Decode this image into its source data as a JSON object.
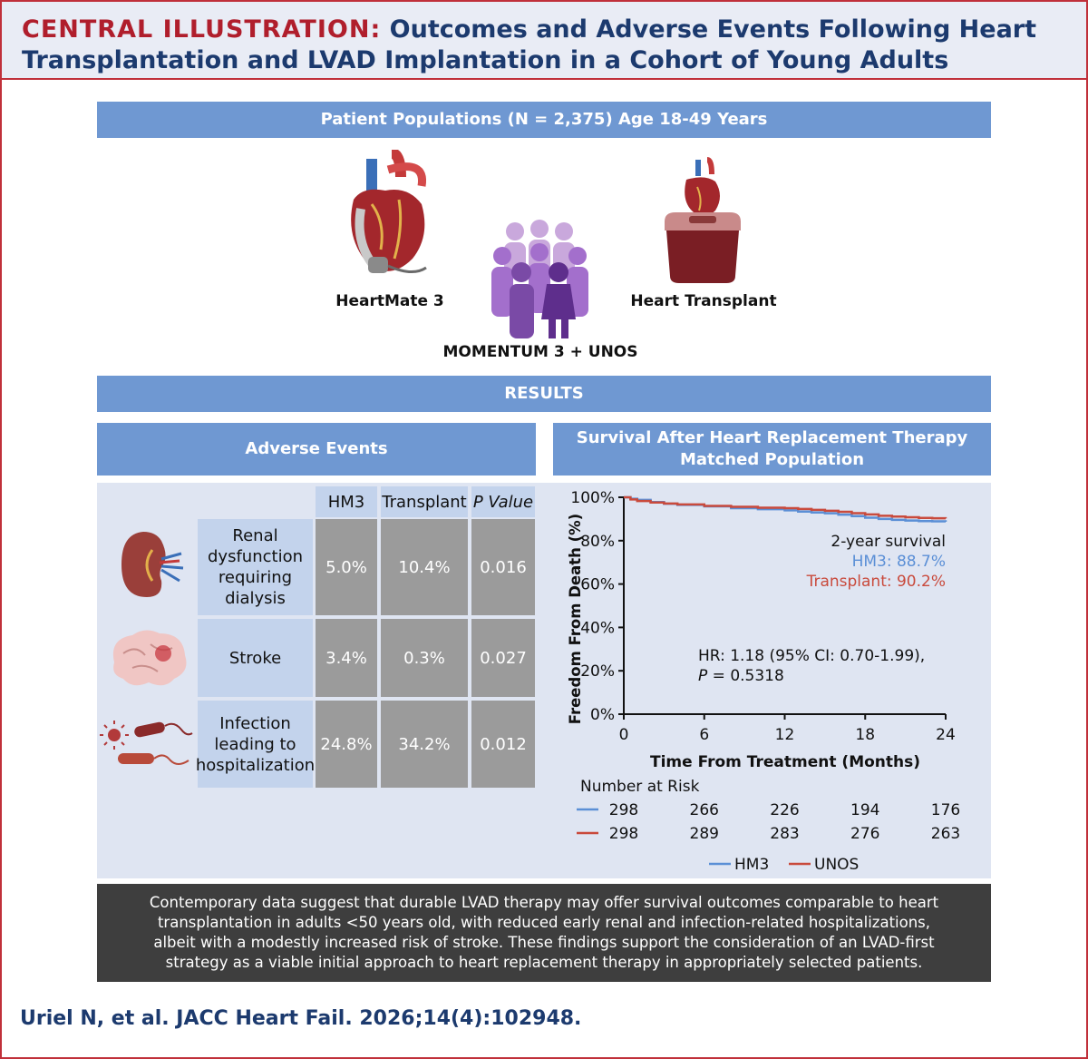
{
  "header": {
    "lead": "CENTRAL ILLUSTRATION:",
    "title": "Outcomes and Adverse Events Following Heart Transplantation and LVAD Implantation in a Cohort of Young Adults"
  },
  "populations": {
    "bar": "Patient Populations (N = 2,375) Age 18-49 Years",
    "left_label": "HeartMate 3",
    "center_label": "MOMENTUM 3 + UNOS",
    "right_label": "Heart Transplant"
  },
  "results_bar": "RESULTS",
  "adverse": {
    "title": "Adverse Events",
    "columns": [
      "HM3",
      "Transplant",
      "P Value"
    ],
    "rows": [
      {
        "label": "Renal dysfunction requiring dialysis",
        "hm3": "5.0%",
        "transplant": "10.4%",
        "p": "0.016"
      },
      {
        "label": "Stroke",
        "hm3": "3.4%",
        "transplant": "0.3%",
        "p": "0.027"
      },
      {
        "label": "Infection leading to hospitalization",
        "hm3": "24.8%",
        "transplant": "34.2%",
        "p": "0.012"
      }
    ]
  },
  "survival": {
    "title_line1": "Survival After Heart Replacement Therapy",
    "title_line2": "Matched Population"
  },
  "chart_data": {
    "type": "line",
    "xlabel": "Time From Treatment (Months)",
    "ylabel": "Freedom From Death (%)",
    "xlim": [
      0,
      24
    ],
    "ylim": [
      0,
      100
    ],
    "x_ticks": [
      "0",
      "6",
      "12",
      "18",
      "24"
    ],
    "y_ticks": [
      "0%",
      "20%",
      "40%",
      "60%",
      "80%",
      "100%"
    ],
    "series": [
      {
        "name": "HM3",
        "color": "#5b8fd6",
        "x": [
          0,
          0.5,
          1,
          2,
          3,
          4,
          6,
          8,
          10,
          12,
          13,
          14,
          15,
          16,
          17,
          18,
          19,
          20,
          21,
          22,
          23,
          24
        ],
        "y": [
          100,
          99.3,
          98.8,
          97.8,
          97.0,
          96.5,
          95.8,
          95.0,
          94.5,
          94.0,
          93.4,
          93.0,
          92.6,
          92.0,
          91.3,
          90.6,
          90.0,
          89.6,
          89.3,
          89.0,
          88.9,
          88.7
        ]
      },
      {
        "name": "UNOS",
        "color": "#c94a3c",
        "x": [
          0,
          0.5,
          1,
          2,
          3,
          4,
          6,
          8,
          10,
          12,
          13,
          14,
          15,
          16,
          17,
          18,
          19,
          20,
          21,
          22,
          23,
          24
        ],
        "y": [
          100,
          99.0,
          98.3,
          97.6,
          97.1,
          96.7,
          96.0,
          95.6,
          95.2,
          95.0,
          94.6,
          94.2,
          93.8,
          93.3,
          92.7,
          92.1,
          91.5,
          91.1,
          90.8,
          90.5,
          90.3,
          90.2
        ]
      }
    ],
    "annotations": {
      "survival_head": "2-year survival",
      "hm3_line": "HM3: 88.7%",
      "transplant_line": "Transplant: 90.2%",
      "hr_line1": "HR: 1.18 (95% CI: 0.70-1.99),",
      "hr_p_italic": "P",
      "hr_p_rest": " = 0.5318"
    },
    "risk_table": {
      "title": "Number at Risk",
      "hm3": [
        "298",
        "266",
        "226",
        "194",
        "176"
      ],
      "unos": [
        "298",
        "289",
        "283",
        "276",
        "263"
      ]
    },
    "legend": [
      "HM3",
      "UNOS"
    ]
  },
  "summary": "Contemporary data suggest that durable LVAD therapy may offer survival outcomes comparable to heart transplantation in adults <50 years old, with reduced early renal and infection-related hospitalizations, albeit with a modestly increased risk of stroke. These findings support the consideration of an LVAD-first strategy as a viable initial approach to heart replacement therapy in appropriately selected patients.",
  "citation": "Uriel N, et al. JACC Heart Fail. 2026;14(4):102948."
}
